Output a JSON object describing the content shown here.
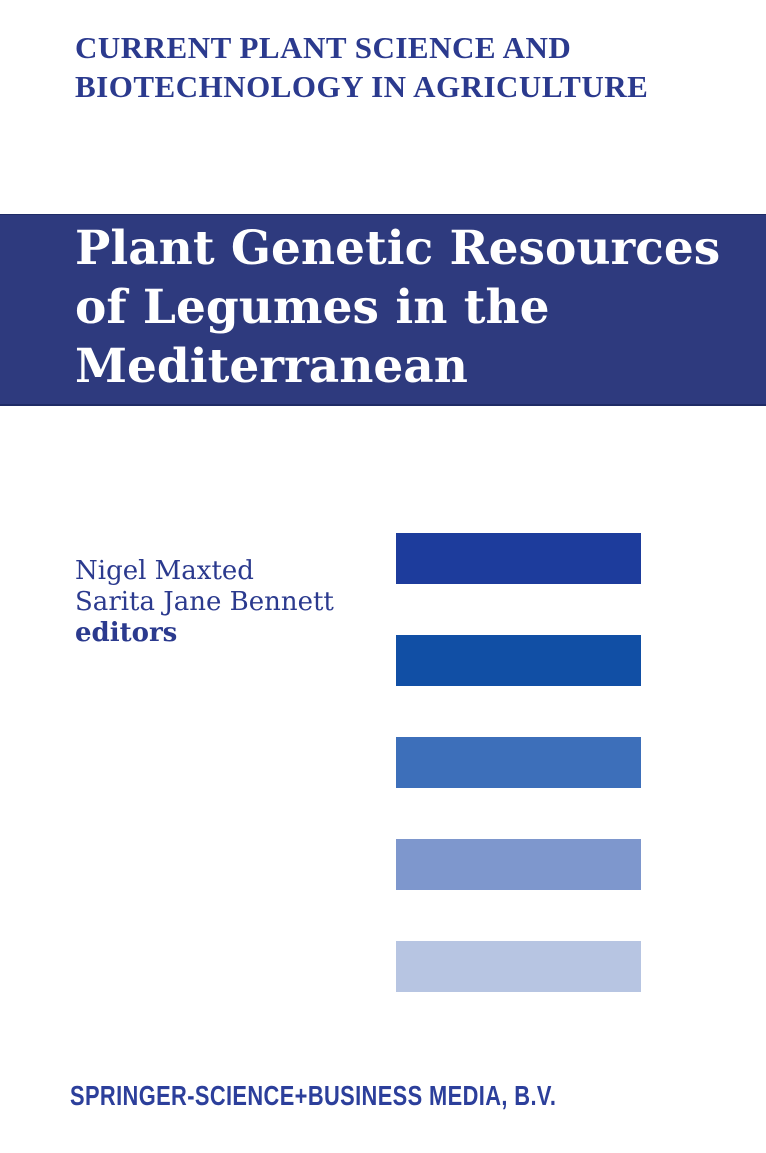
{
  "cover": {
    "series_title": {
      "line1": "CURRENT PLANT SCIENCE AND",
      "line2": "BIOTECHNOLOGY IN AGRICULTURE"
    },
    "book_title": {
      "line1": "Plant Genetic Resources",
      "line2": "of Legumes in the",
      "line3": "Mediterranean"
    },
    "editors": {
      "name1": "Nigel Maxted",
      "name2": "Sarita Jane Bennett",
      "role_label": "editors"
    },
    "publisher": "SPRINGER-SCIENCE+BUSINESS MEDIA, B.V.",
    "colors": {
      "series_text": "#2b3a8e",
      "banner_background": "#2e3a7e",
      "banner_edge": "#1f2b66",
      "title_text": "#ffffff",
      "editors_text": "#2b3a8e",
      "publisher_text": "#2c3f9b",
      "decorative_bars": [
        "#1d3c9c",
        "#114fa5",
        "#3d6fba",
        "#7e97cd",
        "#b7c5e2"
      ]
    }
  }
}
